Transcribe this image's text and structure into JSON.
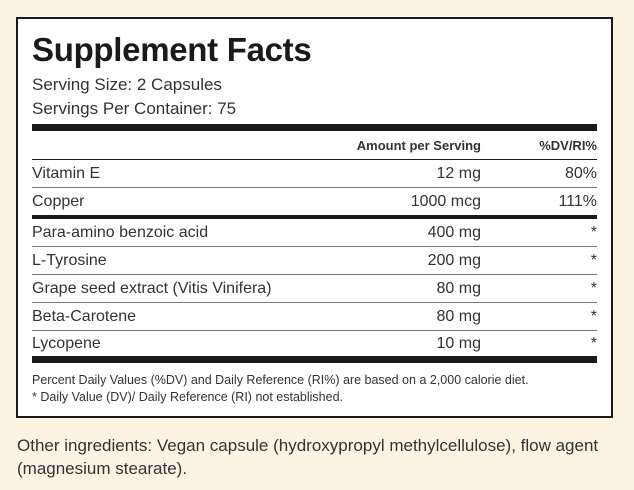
{
  "facts": {
    "title": "Supplement Facts",
    "serving_size": "Serving Size: 2 Capsules",
    "servings_per_container": "Servings Per Container: 75",
    "columns": {
      "amount": "Amount per Serving",
      "dv": "%DV/RI%"
    },
    "rows": [
      {
        "name": "Vitamin E",
        "amount": "12 mg",
        "dv": "80%"
      },
      {
        "name": "Copper",
        "amount": "1000 mcg",
        "dv": "111%"
      },
      {
        "name": "Para-amino benzoic acid",
        "amount": "400 mg",
        "dv": "*"
      },
      {
        "name": "L-Tyrosine",
        "amount": "200 mg",
        "dv": "*"
      },
      {
        "name": "Grape seed extract (Vitis Vinifera)",
        "amount": "80 mg",
        "dv": "*"
      },
      {
        "name": "Beta-Carotene",
        "amount": "80 mg",
        "dv": "*"
      },
      {
        "name": "Lycopene",
        "amount": "10 mg",
        "dv": "*"
      }
    ],
    "footnotes": [
      "Percent Daily Values (%DV) and Daily Reference (RI%) are based on a 2,000 calorie diet.",
      "* Daily Value (DV)/ Daily Reference (RI) not established."
    ]
  },
  "other_ingredients": "Other ingredients: Vegan capsule (hydroxypropyl methylcellulose), flow agent (magnesium stearate)."
}
